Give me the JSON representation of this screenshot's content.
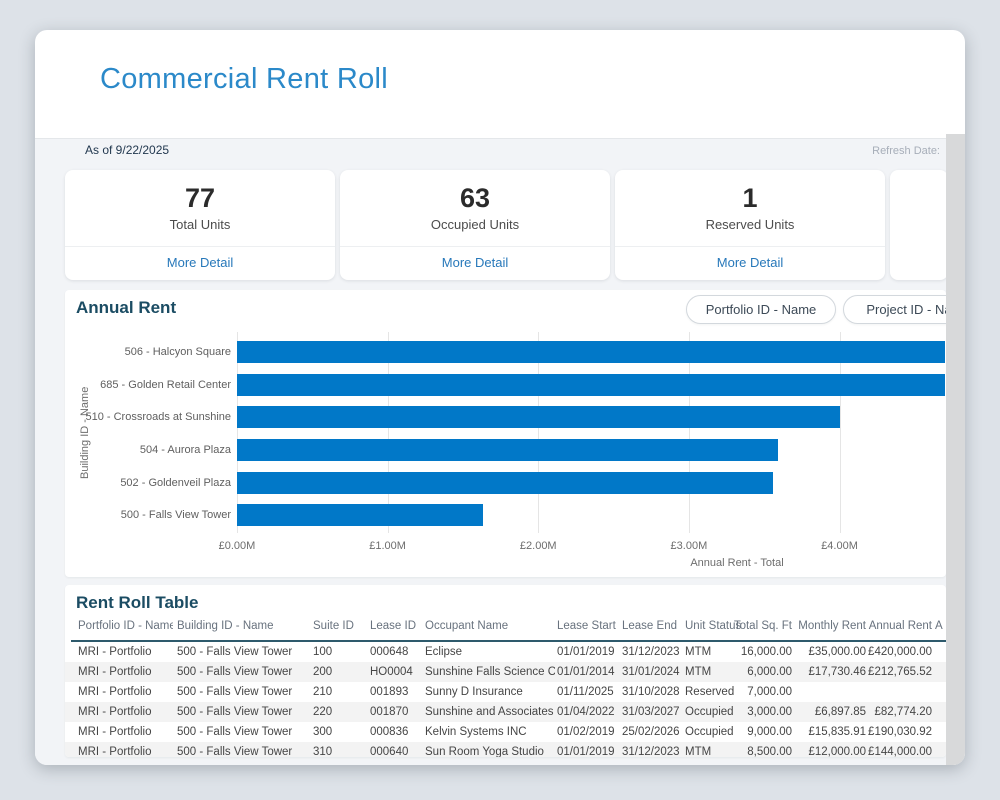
{
  "app": {
    "title": "Commercial Rent Roll",
    "as_of": "As of 9/22/2025",
    "refresh_label": "Refresh Date:"
  },
  "colors": {
    "title_blue": "#2b89c9",
    "link_blue": "#2778ba",
    "section_header": "#1b4c63",
    "bar_blue": "#0178c8",
    "table_header_rule": "#2e5a6c"
  },
  "kpi_cards": [
    {
      "value": "77",
      "label": "Total Units",
      "link": "More Detail"
    },
    {
      "value": "63",
      "label": "Occupied Units",
      "link": "More Detail"
    },
    {
      "value": "1",
      "label": "Reserved Units",
      "link": "More Detail"
    }
  ],
  "annual_rent_section": {
    "title": "Annual Rent",
    "filter_buttons": [
      "Portfolio ID - Name",
      "Project ID - Name"
    ]
  },
  "chart_data": {
    "type": "bar",
    "orientation": "horizontal",
    "title": "Annual Rent",
    "xlabel": "Annual Rent - Total",
    "ylabel": "Building ID - Name",
    "categories": [
      "506 - Halcyon Square",
      "685 - Golden Retail Center",
      "510 - Crossroads at Sunshine",
      "504 - Aurora Plaza",
      "502 - Goldenveil Plaza",
      "500 - Falls View Tower"
    ],
    "values_gbp_m": [
      4.7,
      4.7,
      4.0,
      3.59,
      3.56,
      1.63
    ],
    "clipped_at_right_edge": [
      true,
      true,
      false,
      false,
      false,
      false
    ],
    "x_ticks": [
      "£0.00M",
      "£1.00M",
      "£2.00M",
      "£3.00M",
      "£4.00M"
    ],
    "x_tick_values": [
      0,
      1,
      2,
      3,
      4
    ],
    "x_visible_max": 4.7,
    "bar_color": "#0178c8",
    "grid": true,
    "legend": "none"
  },
  "table_section": {
    "title": "Rent Roll Table",
    "columns": [
      "Portfolio ID - Name",
      "Building ID - Name",
      "Suite ID",
      "Lease ID",
      "Occupant Name",
      "Lease Start",
      "Lease End",
      "Unit Status",
      "Total Sq. Ft",
      "Monthly Rent",
      "Annual Rent",
      "A"
    ],
    "rows": [
      [
        "MRI - Portfolio",
        "500 - Falls View Tower",
        "100",
        "000648",
        "Eclipse",
        "01/01/2019",
        "31/12/2023",
        "MTM",
        "16,000.00",
        "£35,000.00",
        "£420,000.00"
      ],
      [
        "MRI - Portfolio",
        "500 - Falls View Tower",
        "200",
        "HO0004",
        "Sunshine Falls Science Center",
        "01/01/2014",
        "31/01/2024",
        "MTM",
        "6,000.00",
        "£17,730.46",
        "£212,765.52"
      ],
      [
        "MRI - Portfolio",
        "500 - Falls View Tower",
        "210",
        "001893",
        "Sunny D Insurance",
        "01/11/2025",
        "31/10/2028",
        "Reserved",
        "7,000.00",
        "",
        ""
      ],
      [
        "MRI - Portfolio",
        "500 - Falls View Tower",
        "220",
        "001870",
        "Sunshine and Associates",
        "01/04/2022",
        "31/03/2027",
        "Occupied",
        "3,000.00",
        "£6,897.85",
        "£82,774.20"
      ],
      [
        "MRI - Portfolio",
        "500 - Falls View Tower",
        "300",
        "000836",
        "Kelvin Systems INC",
        "01/02/2019",
        "25/02/2026",
        "Occupied",
        "9,000.00",
        "£15,835.91",
        "£190,030.92"
      ],
      [
        "MRI - Portfolio",
        "500 - Falls View Tower",
        "310",
        "000640",
        "Sun Room Yoga Studio",
        "01/01/2019",
        "31/12/2023",
        "MTM",
        "8,500.00",
        "£12,000.00",
        "£144,000.00"
      ]
    ]
  }
}
